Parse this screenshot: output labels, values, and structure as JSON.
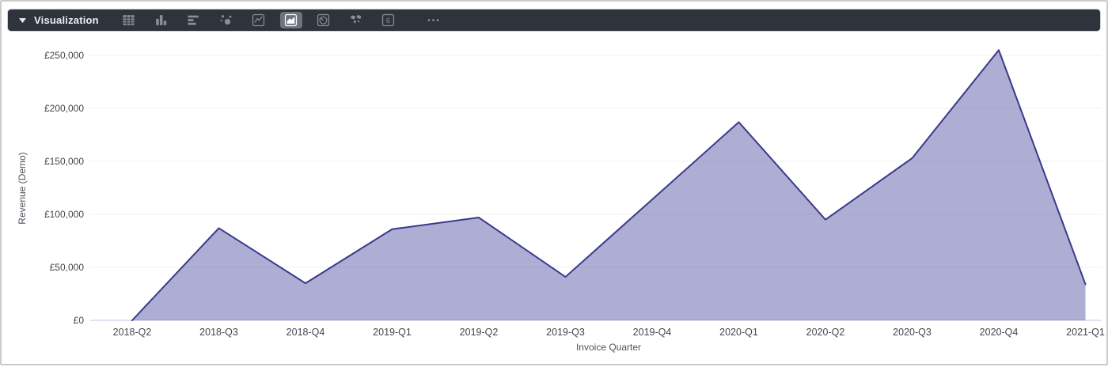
{
  "toolbar": {
    "title": "Visualization",
    "selected_type": "area",
    "icons": [
      {
        "name": "table-icon",
        "label": "Table"
      },
      {
        "name": "bar-chart-icon",
        "label": "Bar"
      },
      {
        "name": "row-chart-icon",
        "label": "Row"
      },
      {
        "name": "scatter-icon",
        "label": "Scatter"
      },
      {
        "name": "line-chart-icon",
        "label": "Line"
      },
      {
        "name": "area-chart-icon",
        "label": "Area"
      },
      {
        "name": "pie-chart-icon",
        "label": "Pie"
      },
      {
        "name": "world-map-icon",
        "label": "Map"
      },
      {
        "name": "number-icon",
        "label": "Number",
        "glyph": "6"
      },
      {
        "name": "more-options-icon",
        "label": "More options",
        "glyph": "•••"
      }
    ]
  },
  "chart_data": {
    "type": "area",
    "title": "",
    "xlabel": "Invoice Quarter",
    "ylabel": "Revenue (Demo)",
    "categories": [
      "2018-Q2",
      "2018-Q3",
      "2018-Q4",
      "2019-Q1",
      "2019-Q2",
      "2019-Q3",
      "2019-Q4",
      "2020-Q1",
      "2020-Q2",
      "2020-Q3",
      "2020-Q4",
      "2021-Q1"
    ],
    "values": [
      0,
      87000,
      35000,
      86000,
      97000,
      41000,
      114000,
      187000,
      95000,
      153000,
      255000,
      34000
    ],
    "ylim": [
      0,
      250000
    ],
    "y_ticks": [
      {
        "value": 0,
        "label": "£0"
      },
      {
        "value": 50000,
        "label": "£50,000"
      },
      {
        "value": 100000,
        "label": "£100,000"
      },
      {
        "value": 150000,
        "label": "£150,000"
      },
      {
        "value": 200000,
        "label": "£200,000"
      },
      {
        "value": 250000,
        "label": "£250,000"
      }
    ],
    "grid": true,
    "legend": "none",
    "colors": {
      "line": "#3a3a8c",
      "fill": "rgba(76,74,160,0.45)",
      "zero_line": "#d8d6ee",
      "grid_line": "#f0f0f0",
      "tick_text": "#42464d",
      "axis_title_text": "#4d535b"
    }
  }
}
